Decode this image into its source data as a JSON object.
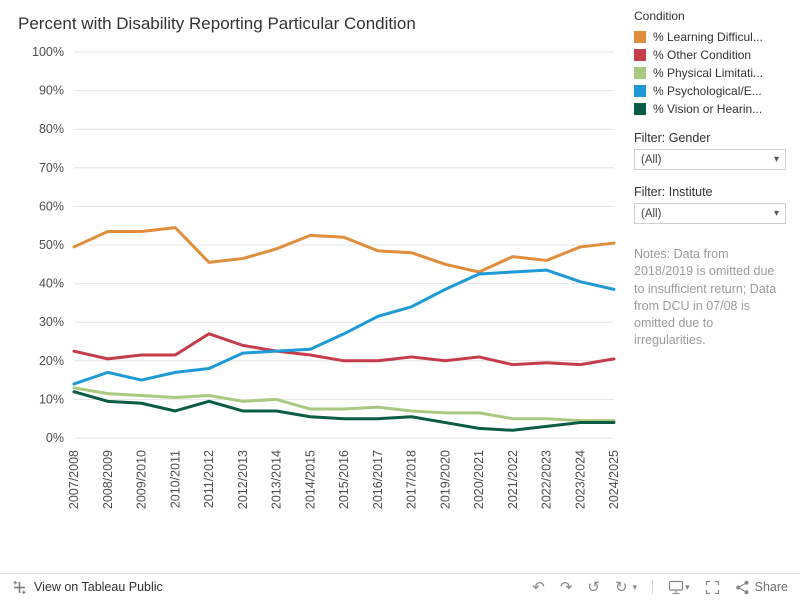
{
  "title": "Percent with Disability Reporting Particular Condition",
  "legend": {
    "title": "Condition",
    "items": [
      {
        "label": "% Learning Difficul...",
        "color": "#e08d3c"
      },
      {
        "label": "% Other Condition",
        "color": "#c53c4b"
      },
      {
        "label": "% Physical Limitati...",
        "color": "#a9c981"
      },
      {
        "label": "% Psychological/E...",
        "color": "#1f9ad7"
      },
      {
        "label": "% Vision or Hearin...",
        "color": "#0c5c45"
      }
    ]
  },
  "filters": [
    {
      "label": "Filter: Gender",
      "value": "(All)"
    },
    {
      "label": "Filter: Institute",
      "value": "(All)"
    }
  ],
  "notes": "Notes: Data from 2018/2019 is omitted due to insufficient return; Data from DCU in 07/08 is omitted due to irregularities.",
  "icons": {
    "caret_down": "▾"
  },
  "footer": {
    "view_label": "View on Tableau Public",
    "share_label": "Share",
    "icons": [
      {
        "name": "undo",
        "glyph": "↶"
      },
      {
        "name": "redo",
        "glyph": "↷"
      },
      {
        "name": "reset",
        "glyph": "↺"
      },
      {
        "name": "refresh",
        "glyph": "↻"
      }
    ]
  },
  "chart_data": {
    "type": "line",
    "title": "Percent with Disability Reporting Particular Condition",
    "xlabel": "",
    "ylabel": "",
    "ylim": [
      0,
      100
    ],
    "yticks": [
      0,
      10,
      20,
      30,
      40,
      50,
      60,
      70,
      80,
      90,
      100
    ],
    "grid": true,
    "legend_position": "right",
    "categories": [
      "2007/2008",
      "2008/2009",
      "2009/2010",
      "2010/2011",
      "2011/2012",
      "2012/2013",
      "2013/2014",
      "2014/2015",
      "2015/2016",
      "2016/2017",
      "2017/2018",
      "2019/2020",
      "2020/2021",
      "2021/2022",
      "2022/2023",
      "2023/2024",
      "2024/2025"
    ],
    "series": [
      {
        "name": "% Learning Difficulty",
        "values": [
          49.5,
          53.5,
          53.5,
          54.5,
          45.5,
          46.5,
          49,
          52.5,
          52,
          48.5,
          48,
          45,
          43,
          47,
          46,
          49.5,
          50.5
        ]
      },
      {
        "name": "% Other Condition",
        "values": [
          22.5,
          20.5,
          21.5,
          21.5,
          27,
          24,
          22.5,
          21.5,
          20,
          20,
          21,
          20,
          21,
          19,
          19.5,
          19,
          20.5
        ]
      },
      {
        "name": "% Physical Limitation",
        "values": [
          13,
          11.5,
          11,
          10.5,
          11,
          9.5,
          10,
          7.5,
          7.5,
          8,
          7,
          6.5,
          6.5,
          5,
          5,
          4.5,
          4.5
        ]
      },
      {
        "name": "% Psychological/Emotional",
        "values": [
          14,
          17,
          15,
          17,
          18,
          22,
          22.5,
          23,
          27,
          31.5,
          34,
          38.5,
          42.5,
          43,
          43.5,
          40.5,
          38.5
        ]
      },
      {
        "name": "% Vision or Hearing",
        "values": [
          12,
          9.5,
          9,
          7,
          9.5,
          7,
          7,
          5.5,
          5,
          5,
          5.5,
          4,
          2.5,
          2,
          3,
          4,
          4
        ]
      }
    ]
  }
}
